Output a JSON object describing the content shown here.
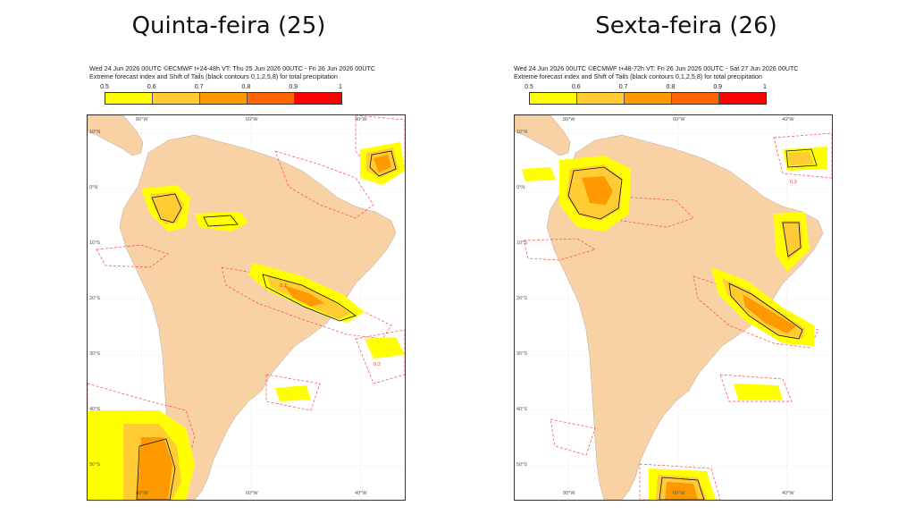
{
  "panels": [
    {
      "title": "Quinta-feira (25)",
      "header_line1": "Wed 24 Jun 2026 00UTC ©ECMWF t+24-48h  VT: Thu 25 Jun 2026 00UTC - Fri 26 Jun 2026 00UTC",
      "header_line2": "Extreme forecast index and Shift of Tails (black contours 0,1,2,5,8) for total precipitation",
      "contour_label": "0.3"
    },
    {
      "title": "Sexta-feira (26)",
      "header_line1": "Wed 24 Jun 2026 00UTC ©ECMWF t+48-72h  VT: Fri 26 Jun 2026 00UTC - Sat 27 Jun 2026 00UTC",
      "header_line2": "Extreme forecast index and Shift of Tails (black contours 0,1,2,5,8) for total precipitation",
      "contour_label": "0.3"
    }
  ],
  "colorbar": {
    "labels": [
      "0.5",
      "0.6",
      "0.7",
      "0.8",
      "0.9",
      "1"
    ],
    "colors": [
      "#ffff00",
      "#ffcc33",
      "#ff9900",
      "#ff6600",
      "#ff0000"
    ]
  },
  "map": {
    "land_color": "#f8d2a4",
    "ocean_color": "#ffffff",
    "lat_labels": [
      "10°N",
      "0°N",
      "10°S",
      "20°S",
      "30°S",
      "40°S",
      "50°S"
    ],
    "lon_labels": [
      "80°W",
      "60°W",
      "40°W"
    ]
  }
}
